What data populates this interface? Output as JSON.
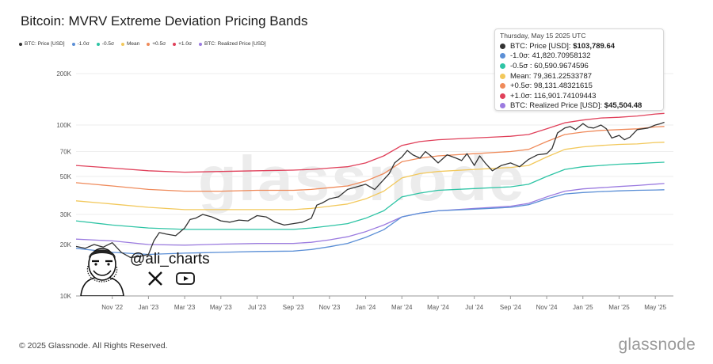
{
  "title": "Bitcoin: MVRV Extreme Deviation Pricing Bands",
  "legend": [
    {
      "label": "BTC: Price [USD]",
      "color": "#333333"
    },
    {
      "label": "-1.0σ",
      "color": "#5b8fd6"
    },
    {
      "label": "-0.5σ",
      "color": "#2ec4a5"
    },
    {
      "label": "Mean",
      "color": "#f2c85b"
    },
    {
      "label": "+0.5σ",
      "color": "#ef8a5a"
    },
    {
      "label": "+1.0σ",
      "color": "#e0405a"
    },
    {
      "label": "BTC: Realized Price [USD]",
      "color": "#9b7be0"
    }
  ],
  "tooltip": {
    "date": "Thursday, May 15 2025 UTC",
    "rows": [
      {
        "label": "BTC: Price [USD]: ",
        "value": "$103,789.64",
        "color": "#333333",
        "bold": true
      },
      {
        "label": "-1.0σ: ",
        "value": "41,820.70958132",
        "color": "#5b8fd6",
        "bold": false
      },
      {
        "label": "-0.5σ : ",
        "value": "60,590.9674596",
        "color": "#2ec4a5",
        "bold": false
      },
      {
        "label": "Mean: ",
        "value": "79,361.22533787",
        "color": "#f2c85b",
        "bold": false
      },
      {
        "label": "+0.5σ: ",
        "value": "98,131.48321615",
        "color": "#ef8a5a",
        "bold": false
      },
      {
        "label": "+1.0σ: ",
        "value": "116,901.74109443",
        "color": "#e0405a",
        "bold": false
      },
      {
        "label": "BTC: Realized Price [USD]: ",
        "value": "$45,504.48",
        "color": "#9b7be0",
        "bold": true
      }
    ]
  },
  "chart_data": {
    "type": "line",
    "yscale": "log",
    "ylim": [
      10000,
      200000
    ],
    "yticks": [
      {
        "value": 10000,
        "label": "10K"
      },
      {
        "value": 20000,
        "label": "20K"
      },
      {
        "value": 30000,
        "label": "30K"
      },
      {
        "value": 50000,
        "label": "50K"
      },
      {
        "value": 70000,
        "label": "70K"
      },
      {
        "value": 100000,
        "label": "100K"
      },
      {
        "value": 200000,
        "label": "200K"
      }
    ],
    "xlim": [
      0,
      33
    ],
    "x_unit": "months since Sep 2022",
    "xticks": [
      {
        "value": 2,
        "label": "Nov '22"
      },
      {
        "value": 4,
        "label": "Jan '23"
      },
      {
        "value": 6,
        "label": "Mar '23"
      },
      {
        "value": 8,
        "label": "May '23"
      },
      {
        "value": 10,
        "label": "Jul '23"
      },
      {
        "value": 12,
        "label": "Sep '23"
      },
      {
        "value": 14,
        "label": "Nov '23"
      },
      {
        "value": 16,
        "label": "Jan '24"
      },
      {
        "value": 18,
        "label": "Mar '24"
      },
      {
        "value": 20,
        "label": "May '24"
      },
      {
        "value": 22,
        "label": "Jul '24"
      },
      {
        "value": 24,
        "label": "Sep '24"
      },
      {
        "value": 26,
        "label": "Nov '24"
      },
      {
        "value": 28,
        "label": "Jan '25"
      },
      {
        "value": 30,
        "label": "Mar '25"
      },
      {
        "value": 32,
        "label": "May '25"
      }
    ],
    "series": [
      {
        "name": "+1.0σ",
        "color": "#e0405a",
        "x": [
          0,
          2,
          4,
          6,
          8,
          10,
          12,
          13,
          14,
          15,
          16,
          17,
          18,
          19,
          20,
          22,
          24,
          25,
          26,
          27,
          28,
          29,
          30,
          31,
          32,
          32.5
        ],
        "y": [
          58000,
          56000,
          54000,
          53000,
          53500,
          54000,
          54500,
          55000,
          56000,
          57000,
          60000,
          66000,
          76000,
          80000,
          82000,
          84000,
          86000,
          88000,
          95000,
          103000,
          107000,
          110000,
          111000,
          113000,
          116000,
          117000
        ]
      },
      {
        "name": "+0.5σ",
        "color": "#ef8a5a",
        "x": [
          0,
          2,
          4,
          6,
          8,
          10,
          12,
          13,
          14,
          15,
          16,
          17,
          18,
          19,
          20,
          22,
          24,
          25,
          26,
          27,
          28,
          29,
          30,
          31,
          32,
          32.5
        ],
        "y": [
          46000,
          44000,
          42000,
          41000,
          41000,
          41500,
          41500,
          42000,
          43000,
          44000,
          47000,
          52000,
          61000,
          64000,
          66000,
          68000,
          70000,
          72000,
          80000,
          88000,
          91000,
          93000,
          94000,
          95000,
          97500,
          98100
        ]
      },
      {
        "name": "Mean",
        "color": "#f2c85b",
        "x": [
          0,
          2,
          4,
          6,
          8,
          10,
          12,
          13,
          14,
          15,
          16,
          17,
          18,
          19,
          20,
          22,
          24,
          25,
          26,
          27,
          28,
          29,
          30,
          31,
          32,
          32.5
        ],
        "y": [
          36000,
          34500,
          33000,
          32000,
          32000,
          32000,
          32000,
          32500,
          33500,
          34500,
          37000,
          41000,
          49000,
          52000,
          53500,
          55000,
          56500,
          58000,
          65000,
          72000,
          74500,
          76000,
          77000,
          77500,
          79000,
          79400
        ]
      },
      {
        "name": "-0.5σ",
        "color": "#2ec4a5",
        "x": [
          0,
          2,
          4,
          6,
          8,
          10,
          12,
          13,
          14,
          15,
          16,
          17,
          18,
          19,
          20,
          22,
          24,
          25,
          26,
          27,
          28,
          29,
          30,
          31,
          32,
          32.5
        ],
        "y": [
          27500,
          26000,
          25000,
          24500,
          24500,
          24500,
          24500,
          25000,
          25700,
          26500,
          28500,
          31500,
          38000,
          40000,
          41500,
          42500,
          43500,
          45000,
          50000,
          55000,
          57000,
          58000,
          59000,
          59500,
          60300,
          60600
        ]
      },
      {
        "name": "BTC: Realized Price [USD]",
        "color": "#9b7be0",
        "x": [
          0,
          2,
          4,
          6,
          8,
          10,
          12,
          13,
          14,
          15,
          16,
          17,
          18,
          19,
          20,
          22,
          24,
          25,
          26,
          27,
          28,
          29,
          30,
          31,
          32,
          32.5
        ],
        "y": [
          21500,
          21000,
          20000,
          19800,
          20100,
          20300,
          20300,
          20600,
          21300,
          22200,
          23800,
          26000,
          29000,
          30500,
          31500,
          32500,
          33500,
          34800,
          38000,
          41000,
          42300,
          43000,
          43700,
          44300,
          45100,
          45500
        ]
      },
      {
        "name": "-1.0σ",
        "color": "#5b8fd6",
        "x": [
          0,
          2,
          4,
          6,
          8,
          10,
          12,
          13,
          14,
          15,
          16,
          17,
          18,
          19,
          20,
          22,
          24,
          25,
          26,
          27,
          28,
          29,
          30,
          31,
          32,
          32.5
        ],
        "y": [
          19000,
          18000,
          17500,
          17800,
          18000,
          18200,
          18300,
          18700,
          19400,
          20300,
          22000,
          24400,
          29000,
          30500,
          31500,
          32200,
          33000,
          34200,
          37000,
          39500,
          40300,
          40800,
          41200,
          41500,
          41700,
          41820
        ]
      },
      {
        "name": "BTC: Price [USD]",
        "color": "#333333",
        "x": [
          0,
          0.5,
          1,
          1.5,
          2,
          2.5,
          3,
          3.5,
          4,
          4.3,
          4.6,
          5,
          5.5,
          6,
          6.3,
          6.6,
          7,
          7.5,
          8,
          8.5,
          9,
          9.5,
          10,
          10.5,
          11,
          11.5,
          12,
          12.5,
          13,
          13.3,
          13.6,
          14,
          14.5,
          15,
          15.5,
          16,
          16.5,
          17,
          17.3,
          17.6,
          18,
          18.3,
          18.6,
          19,
          19.3,
          19.6,
          20,
          20.5,
          21,
          21.3,
          21.6,
          22,
          22.3,
          22.6,
          23,
          23.5,
          24,
          24.5,
          25,
          25.5,
          26,
          26.3,
          26.6,
          27,
          27.3,
          27.6,
          28,
          28.3,
          28.6,
          29,
          29.3,
          29.6,
          30,
          30.3,
          30.6,
          31,
          31.3,
          31.6,
          32,
          32.3,
          32.5
        ],
        "y": [
          19500,
          19000,
          20000,
          19300,
          20500,
          18000,
          16800,
          17000,
          17500,
          21000,
          23500,
          23000,
          22500,
          25000,
          28000,
          28500,
          30000,
          29000,
          27500,
          27000,
          27800,
          27500,
          29500,
          29000,
          27000,
          26000,
          26500,
          27000,
          28500,
          34000,
          35000,
          37000,
          38000,
          42000,
          43500,
          45000,
          42000,
          48000,
          52000,
          60000,
          65000,
          71000,
          67000,
          64000,
          70000,
          66000,
          60000,
          67000,
          64000,
          62000,
          68000,
          58000,
          66000,
          60000,
          54000,
          58000,
          60000,
          57000,
          63000,
          67000,
          68000,
          73000,
          90000,
          96000,
          98000,
          94000,
          102000,
          97000,
          96000,
          100000,
          95000,
          84000,
          87000,
          82000,
          85000,
          94000,
          95000,
          96000,
          100000,
          102000,
          103790
        ]
      }
    ]
  },
  "handle": "@ali_charts",
  "watermark": "glassnode",
  "footer": "© 2025 Glassnode. All Rights Reserved.",
  "brand": "glassnode"
}
